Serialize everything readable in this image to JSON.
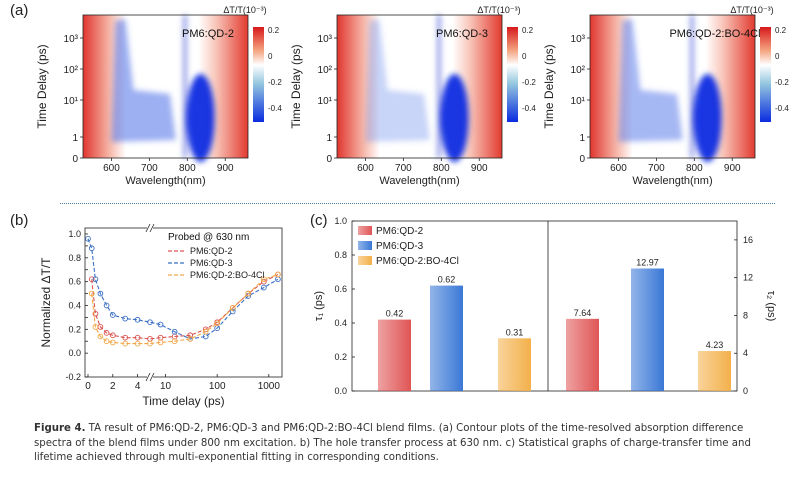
{
  "panel_a": {
    "label": "(a)",
    "xlabel": "Wavelength(nm)",
    "ylabel": "Time Delay (ps)",
    "x_ticks": [
      "600",
      "700",
      "800",
      "900"
    ],
    "y_ticks": [
      "10³",
      "10²",
      "10¹",
      "1",
      "0"
    ],
    "cbar_title": "ΔT/T(10⁻³)",
    "cbar_ticks": [
      "0.2",
      "0",
      "-0.2",
      "-0.4"
    ],
    "maps": [
      {
        "name": "PM6:QD-2"
      },
      {
        "name": "PM6:QD-3"
      },
      {
        "name": "PM6:QD-2:BO-4Cl"
      }
    ]
  },
  "chart_data": [
    {
      "type": "line",
      "panel": "(b)",
      "legend_title": "Probed @ 630 nm",
      "xlabel": "Time delay (ps)",
      "ylabel": "Normalized ΔT/T",
      "x_ticks": [
        "0",
        "2",
        "4",
        "10",
        "100",
        "1000"
      ],
      "y_ticks": [
        "-0.2",
        "0.0",
        "0.1",
        "0.2",
        "0.3",
        "0.4",
        "0.5",
        "0.6",
        "0.7",
        "0.8",
        "0.9",
        "1.0"
      ],
      "ylim": [
        -0.2,
        1.05
      ],
      "x_axis": "broken: linear 0–5 ps, log 5–1800 ps",
      "series": [
        {
          "name": "PM6:QD-2",
          "color": "#d9534f",
          "x": [
            0.3,
            0.6,
            1,
            1.5,
            2,
            3,
            4,
            5,
            8,
            15,
            30,
            60,
            100,
            200,
            400,
            800,
            1500
          ],
          "y": [
            0.62,
            0.33,
            0.22,
            0.17,
            0.15,
            0.13,
            0.13,
            0.12,
            0.13,
            0.14,
            0.15,
            0.2,
            0.26,
            0.38,
            0.5,
            0.6,
            0.66
          ]
        },
        {
          "name": "PM6:QD-3",
          "color": "#3a6fc4",
          "x": [
            0,
            0.3,
            0.6,
            1,
            1.5,
            2,
            3,
            4,
            5,
            8,
            15,
            30,
            60,
            100,
            200,
            400,
            800,
            1500
          ],
          "y": [
            0.96,
            0.88,
            0.62,
            0.5,
            0.4,
            0.32,
            0.29,
            0.28,
            0.26,
            0.24,
            0.18,
            0.12,
            0.14,
            0.21,
            0.35,
            0.48,
            0.55,
            0.62
          ]
        },
        {
          "name": "PM6:QD-2:BO-4Cl",
          "color": "#f0a848",
          "x": [
            0.3,
            0.6,
            1,
            1.5,
            2,
            3,
            4,
            5,
            8,
            15,
            30,
            60,
            100,
            200,
            400,
            800,
            1500
          ],
          "y": [
            0.5,
            0.22,
            0.14,
            0.1,
            0.09,
            0.08,
            0.08,
            0.08,
            0.09,
            0.1,
            0.12,
            0.18,
            0.25,
            0.38,
            0.5,
            0.62,
            0.66
          ]
        }
      ]
    },
    {
      "type": "bar",
      "panel": "(c)",
      "ylabel_left": "τ₁ (ps)",
      "ylabel_right": "τ₂ (ps)",
      "left_ylim": [
        0,
        1.0
      ],
      "left_ticks": [
        "0.0",
        "0.2",
        "0.4",
        "0.6",
        "0.8",
        "1.0"
      ],
      "right_ylim": [
        0,
        18
      ],
      "right_ticks": [
        "0",
        "4",
        "8",
        "12",
        "16"
      ],
      "legend": [
        "PM6:QD-2",
        "PM6:QD-3",
        "PM6:QD-2:BO-4Cl"
      ],
      "colors": [
        "#e05555",
        "#3a78d6",
        "#f3b04a"
      ],
      "tau1": [
        0.42,
        0.62,
        0.31
      ],
      "tau1_labels": [
        "0.42",
        "0.62",
        "0.31"
      ],
      "tau2": [
        7.64,
        12.97,
        4.23
      ],
      "tau2_labels": [
        "7.64",
        "12.97",
        "4.23"
      ]
    }
  ],
  "caption": {
    "bold": "Figure 4.",
    "text": " TA result of PM6:QD-2, PM6:QD-3 and PM6:QD-2:BO-4Cl blend films. (a) Contour plots of the time-resolved absorption difference spectra of the blend films under 800 nm excitation. b) The hole transfer process at 630 nm. c) Statistical graphs of charge-transfer time and lifetime achieved through multi-exponential fitting in corresponding conditions."
  }
}
